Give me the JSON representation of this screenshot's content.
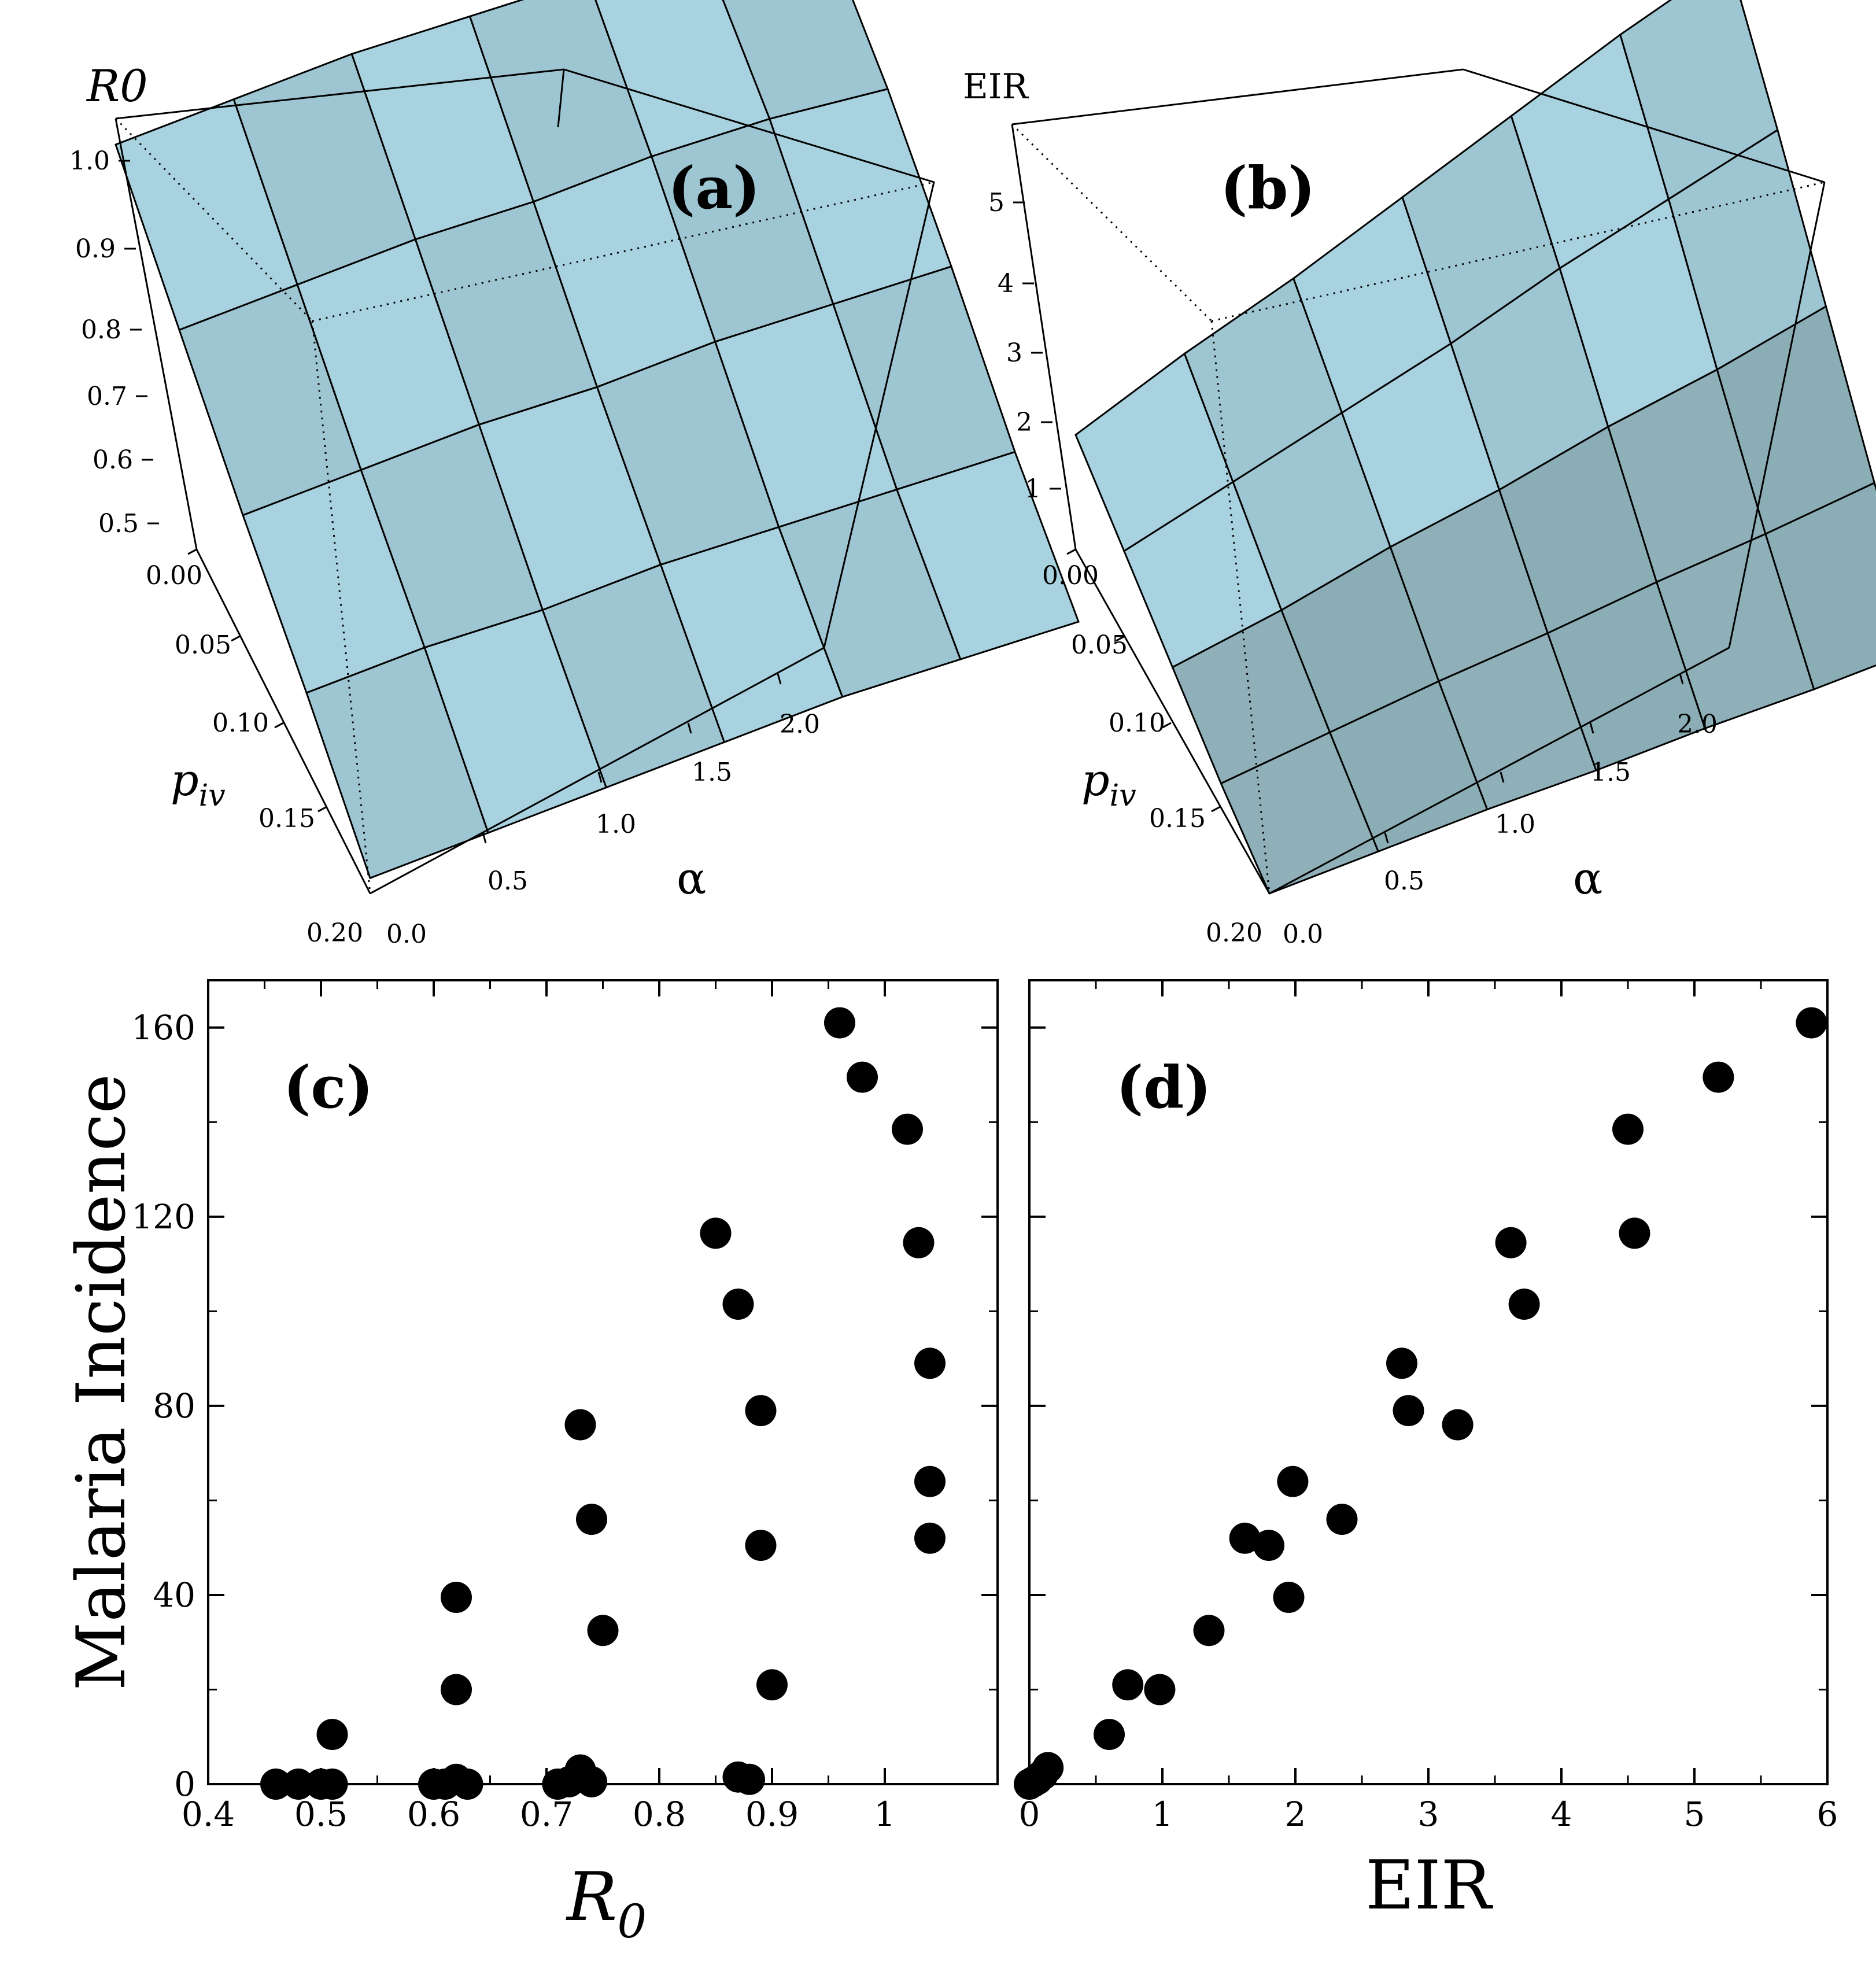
{
  "chart_data": [
    {
      "type": "surface",
      "panel_label": "(a)",
      "zlabel": "R0",
      "xlabel": "α",
      "ylabel": "piv",
      "x_ticks": [
        "0.0",
        "0.5",
        "1.0",
        "1.5",
        "2.0"
      ],
      "y_ticks": [
        "0.00",
        "0.05",
        "0.10",
        "0.15",
        "0.20"
      ],
      "z_ticks": [
        "0.5",
        "0.6",
        "0.7",
        "0.8",
        "0.9",
        "1.0"
      ],
      "z_range": [
        0.45,
        1.05
      ],
      "color": "#a8d2df"
    },
    {
      "type": "surface",
      "panel_label": "(b)",
      "zlabel": "EIR",
      "xlabel": "α",
      "ylabel": "piv",
      "x_ticks": [
        "0.0",
        "0.5",
        "1.0",
        "1.5",
        "2.0"
      ],
      "y_ticks": [
        "0.00",
        "0.05",
        "0.10",
        "0.15",
        "0.20"
      ],
      "z_ticks": [
        "1",
        "2",
        "3",
        "4",
        "5"
      ],
      "z_range": [
        0,
        5.9
      ],
      "color": "#a8d2df"
    },
    {
      "type": "scatter",
      "panel_label": "(c)",
      "xlabel": "R0",
      "ylabel": "Malaria Incidence",
      "xlim": [
        0.4,
        1.1
      ],
      "ylim": [
        0,
        170
      ],
      "x_ticks": [
        0.4,
        0.5,
        0.6,
        0.7,
        0.8,
        0.9,
        1.0
      ],
      "x_tick_labels": [
        "0.4",
        "0.5",
        "0.6",
        "0.7",
        "0.8",
        "0.9",
        "1"
      ],
      "y_ticks": [
        0,
        40,
        80,
        120,
        160
      ],
      "y_tick_labels": [
        "0",
        "40",
        "80",
        "120",
        "160"
      ],
      "points": [
        {
          "x": 0.46,
          "y": 0
        },
        {
          "x": 0.48,
          "y": 0
        },
        {
          "x": 0.5,
          "y": 0
        },
        {
          "x": 0.51,
          "y": 0
        },
        {
          "x": 0.51,
          "y": 10.5
        },
        {
          "x": 0.6,
          "y": 0
        },
        {
          "x": 0.61,
          "y": 0
        },
        {
          "x": 0.62,
          "y": 1
        },
        {
          "x": 0.63,
          "y": 0
        },
        {
          "x": 0.62,
          "y": 20
        },
        {
          "x": 0.62,
          "y": 39.5
        },
        {
          "x": 0.71,
          "y": 0
        },
        {
          "x": 0.72,
          "y": 0.5
        },
        {
          "x": 0.73,
          "y": 3
        },
        {
          "x": 0.74,
          "y": 0.5
        },
        {
          "x": 0.75,
          "y": 32.5
        },
        {
          "x": 0.74,
          "y": 56
        },
        {
          "x": 0.73,
          "y": 76
        },
        {
          "x": 0.87,
          "y": 1.5
        },
        {
          "x": 0.88,
          "y": 1
        },
        {
          "x": 0.9,
          "y": 21
        },
        {
          "x": 0.89,
          "y": 50.5
        },
        {
          "x": 0.89,
          "y": 79
        },
        {
          "x": 0.87,
          "y": 101.5
        },
        {
          "x": 0.85,
          "y": 116.5
        },
        {
          "x": 1.04,
          "y": 52
        },
        {
          "x": 1.04,
          "y": 64
        },
        {
          "x": 1.04,
          "y": 89
        },
        {
          "x": 1.03,
          "y": 114.5
        },
        {
          "x": 1.02,
          "y": 138.5
        },
        {
          "x": 0.98,
          "y": 149.5
        },
        {
          "x": 0.96,
          "y": 161
        }
      ]
    },
    {
      "type": "scatter",
      "panel_label": "(d)",
      "xlabel": "EIR",
      "ylabel": "",
      "xlim": [
        0,
        6
      ],
      "ylim": [
        0,
        170
      ],
      "x_ticks": [
        0,
        1,
        2,
        3,
        4,
        5,
        6
      ],
      "x_tick_labels": [
        "0",
        "1",
        "2",
        "3",
        "4",
        "5",
        "6"
      ],
      "y_ticks": [
        0,
        40,
        80,
        120,
        160
      ],
      "points": [
        {
          "x": 0.0,
          "y": 0
        },
        {
          "x": 0.03,
          "y": 0.5
        },
        {
          "x": 0.06,
          "y": 1
        },
        {
          "x": 0.1,
          "y": 2
        },
        {
          "x": 0.14,
          "y": 3.5
        },
        {
          "x": 0.6,
          "y": 10.5
        },
        {
          "x": 0.74,
          "y": 21
        },
        {
          "x": 0.98,
          "y": 20
        },
        {
          "x": 1.35,
          "y": 32.5
        },
        {
          "x": 1.62,
          "y": 52
        },
        {
          "x": 1.8,
          "y": 50.5
        },
        {
          "x": 1.95,
          "y": 39.5
        },
        {
          "x": 1.98,
          "y": 64
        },
        {
          "x": 2.35,
          "y": 56
        },
        {
          "x": 2.8,
          "y": 89
        },
        {
          "x": 2.85,
          "y": 79
        },
        {
          "x": 3.22,
          "y": 76
        },
        {
          "x": 3.62,
          "y": 114.5
        },
        {
          "x": 3.72,
          "y": 101.5
        },
        {
          "x": 4.5,
          "y": 138.5
        },
        {
          "x": 4.55,
          "y": 116.5
        },
        {
          "x": 5.18,
          "y": 149.5
        },
        {
          "x": 5.88,
          "y": 161
        }
      ]
    }
  ]
}
